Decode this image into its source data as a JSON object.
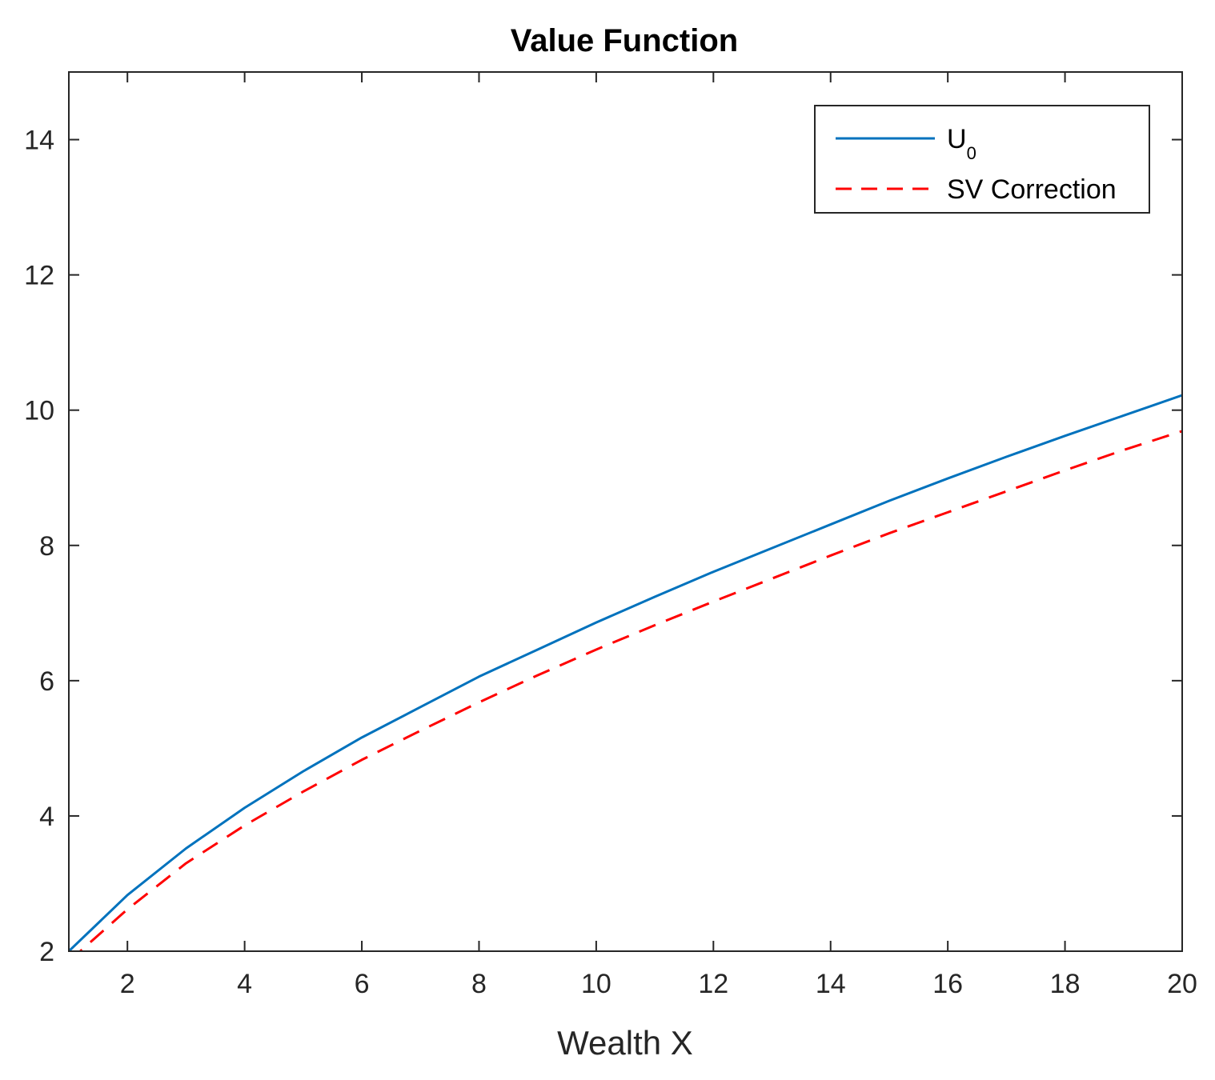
{
  "chart_data": {
    "type": "line",
    "title": "Value Function",
    "xlabel": "Wealth X",
    "ylabel": "",
    "xlim": [
      1,
      20
    ],
    "ylim": [
      2,
      15
    ],
    "xticks": [
      2,
      4,
      6,
      8,
      10,
      12,
      14,
      16,
      18,
      20
    ],
    "yticks": [
      2,
      4,
      6,
      8,
      10,
      12,
      14
    ],
    "grid": false,
    "legend_position": "top-right",
    "series": [
      {
        "name": "U",
        "name_subscript": "0",
        "color": "#0072BD",
        "style": "solid",
        "x": [
          1,
          2,
          3,
          4,
          5,
          6,
          7,
          8,
          9,
          10,
          11,
          12,
          13,
          14,
          15,
          16,
          17,
          18,
          19,
          20
        ],
        "y": [
          2.0,
          2.83,
          3.52,
          4.12,
          4.66,
          5.16,
          5.61,
          6.06,
          6.46,
          6.86,
          7.24,
          7.61,
          7.96,
          8.31,
          8.66,
          8.99,
          9.31,
          9.62,
          9.92,
          10.22
        ]
      },
      {
        "name": "SV Correction",
        "color": "#FF0000",
        "style": "dashed",
        "x": [
          1,
          2,
          3,
          4,
          5,
          6,
          7,
          8,
          9,
          10,
          11,
          12,
          13,
          14,
          15,
          16,
          17,
          18,
          19,
          20
        ],
        "y": [
          1.85,
          2.62,
          3.3,
          3.86,
          4.36,
          4.83,
          5.26,
          5.68,
          6.08,
          6.46,
          6.82,
          7.17,
          7.51,
          7.85,
          8.18,
          8.49,
          8.8,
          9.11,
          9.41,
          9.69
        ]
      }
    ]
  }
}
